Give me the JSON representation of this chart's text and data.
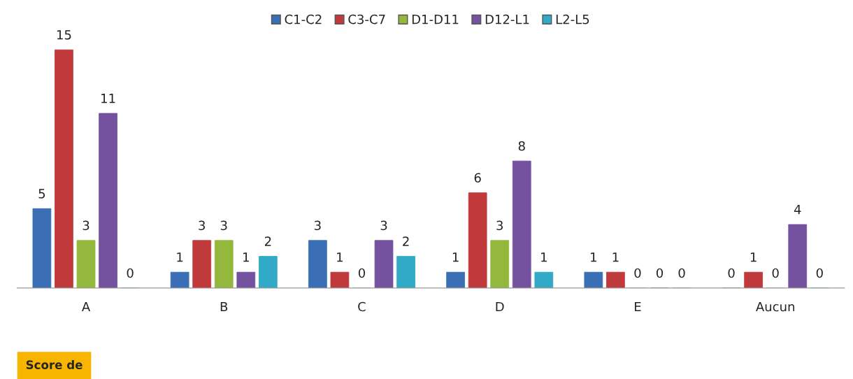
{
  "chart_data": {
    "type": "bar",
    "categories": [
      "A",
      "B",
      "C",
      "D",
      "E",
      "Aucun"
    ],
    "series": [
      {
        "name": "C1-C2",
        "color": "#3a6fb5",
        "values": [
          5,
          1,
          3,
          1,
          1,
          0
        ]
      },
      {
        "name": "C3-C7",
        "color": "#c0393b",
        "values": [
          15,
          3,
          1,
          6,
          1,
          1
        ]
      },
      {
        "name": "D1-D11",
        "color": "#93b83c",
        "values": [
          3,
          3,
          0,
          3,
          0,
          0
        ]
      },
      {
        "name": "D12-L1",
        "color": "#7452a0",
        "values": [
          11,
          1,
          3,
          8,
          0,
          4
        ]
      },
      {
        "name": "L2-L5",
        "color": "#31aac8",
        "values": [
          0,
          2,
          2,
          1,
          0,
          0
        ]
      }
    ],
    "data_labels": true,
    "legend": "top",
    "grid": false,
    "annotations": [
      "Score de"
    ]
  }
}
